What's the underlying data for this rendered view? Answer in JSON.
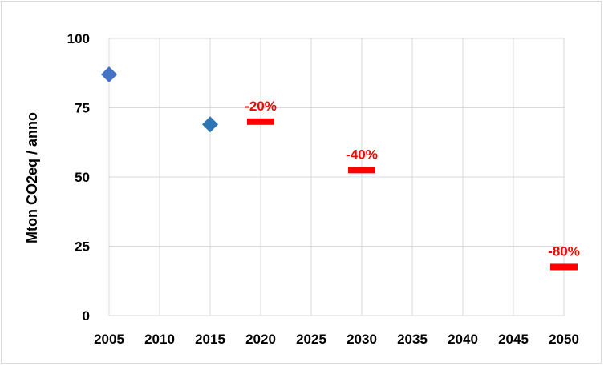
{
  "chart_data": {
    "type": "scatter",
    "ylabel": "Mton CO2eq / anno",
    "xlim": [
      2005,
      2050
    ],
    "ylim": [
      0,
      100
    ],
    "x_ticks": [
      "2005",
      "2010",
      "2015",
      "2020",
      "2025",
      "2030",
      "2035",
      "2040",
      "2045",
      "2050"
    ],
    "y_ticks": [
      "0",
      "25",
      "50",
      "75",
      "100"
    ],
    "grid": true,
    "series": [
      {
        "marker": "diamond",
        "points": [
          {
            "x": 2005,
            "y": 87,
            "color": "#4472c4"
          },
          {
            "x": 2015,
            "y": 69,
            "color": "#2e75b6"
          }
        ]
      },
      {
        "marker": "dash",
        "color": "#ff0000",
        "points": [
          {
            "x": 2020,
            "y": 70,
            "label": "-20%"
          },
          {
            "x": 2030,
            "y": 52.5,
            "label": "-40%"
          },
          {
            "x": 2050,
            "y": 17.5,
            "label": "-80%"
          }
        ]
      }
    ]
  }
}
